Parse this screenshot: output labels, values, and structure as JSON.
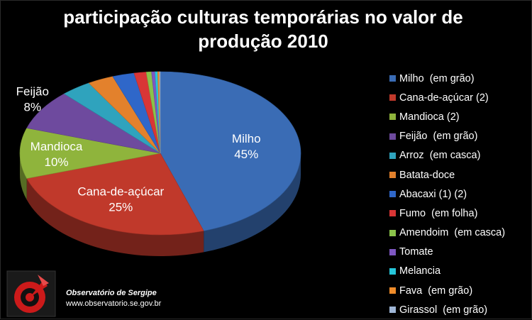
{
  "chart_data": {
    "type": "pie",
    "title": [
      "participação culturas temporárias no valor de",
      "produção 2010"
    ],
    "slices": [
      {
        "name": "Milho  (em grão)",
        "value": 45,
        "color": "#3a6cb5",
        "label": "Milho",
        "pct": "45%"
      },
      {
        "name": "Cana-de-açúcar (2)",
        "value": 25,
        "color": "#c0392b",
        "label": "Cana-de-açúcar",
        "pct": "25%"
      },
      {
        "name": "Mandioca (2)",
        "value": 10,
        "color": "#8fb43c",
        "label": "Mandioca",
        "pct": "10%"
      },
      {
        "name": "Feijão  (em grão)",
        "value": 8,
        "color": "#6e4a9e",
        "label": "Feijão",
        "pct": "8%"
      },
      {
        "name": "Arroz  (em casca)",
        "value": 3.5,
        "color": "#2fa3bd",
        "label": "",
        "pct": ""
      },
      {
        "name": "Batata-doce",
        "value": 3,
        "color": "#e3812c",
        "label": "",
        "pct": ""
      },
      {
        "name": "Abacaxi (1) (2)",
        "value": 2.5,
        "color": "#2f67c9",
        "label": "",
        "pct": ""
      },
      {
        "name": "Fumo  (em folha)",
        "value": 1.4,
        "color": "#d93636",
        "label": "",
        "pct": ""
      },
      {
        "name": "Amendoim  (em casca)",
        "value": 0.6,
        "color": "#8bc34a",
        "label": "",
        "pct": ""
      },
      {
        "name": "Tomate",
        "value": 0.4,
        "color": "#7e57c2",
        "label": "",
        "pct": ""
      },
      {
        "name": "Melancia",
        "value": 0.3,
        "color": "#26c6da",
        "label": "",
        "pct": ""
      },
      {
        "name": "Fava  (em grão)",
        "value": 0.2,
        "color": "#f08c2a",
        "label": "",
        "pct": ""
      },
      {
        "name": "Girassol  (em grão)",
        "value": 0.1,
        "color": "#9fb6d6",
        "label": "",
        "pct": ""
      }
    ],
    "legend_position": "right"
  },
  "source": {
    "name": "Observatório de Sergipe",
    "url": "www.observatorio.se.gov.br"
  }
}
